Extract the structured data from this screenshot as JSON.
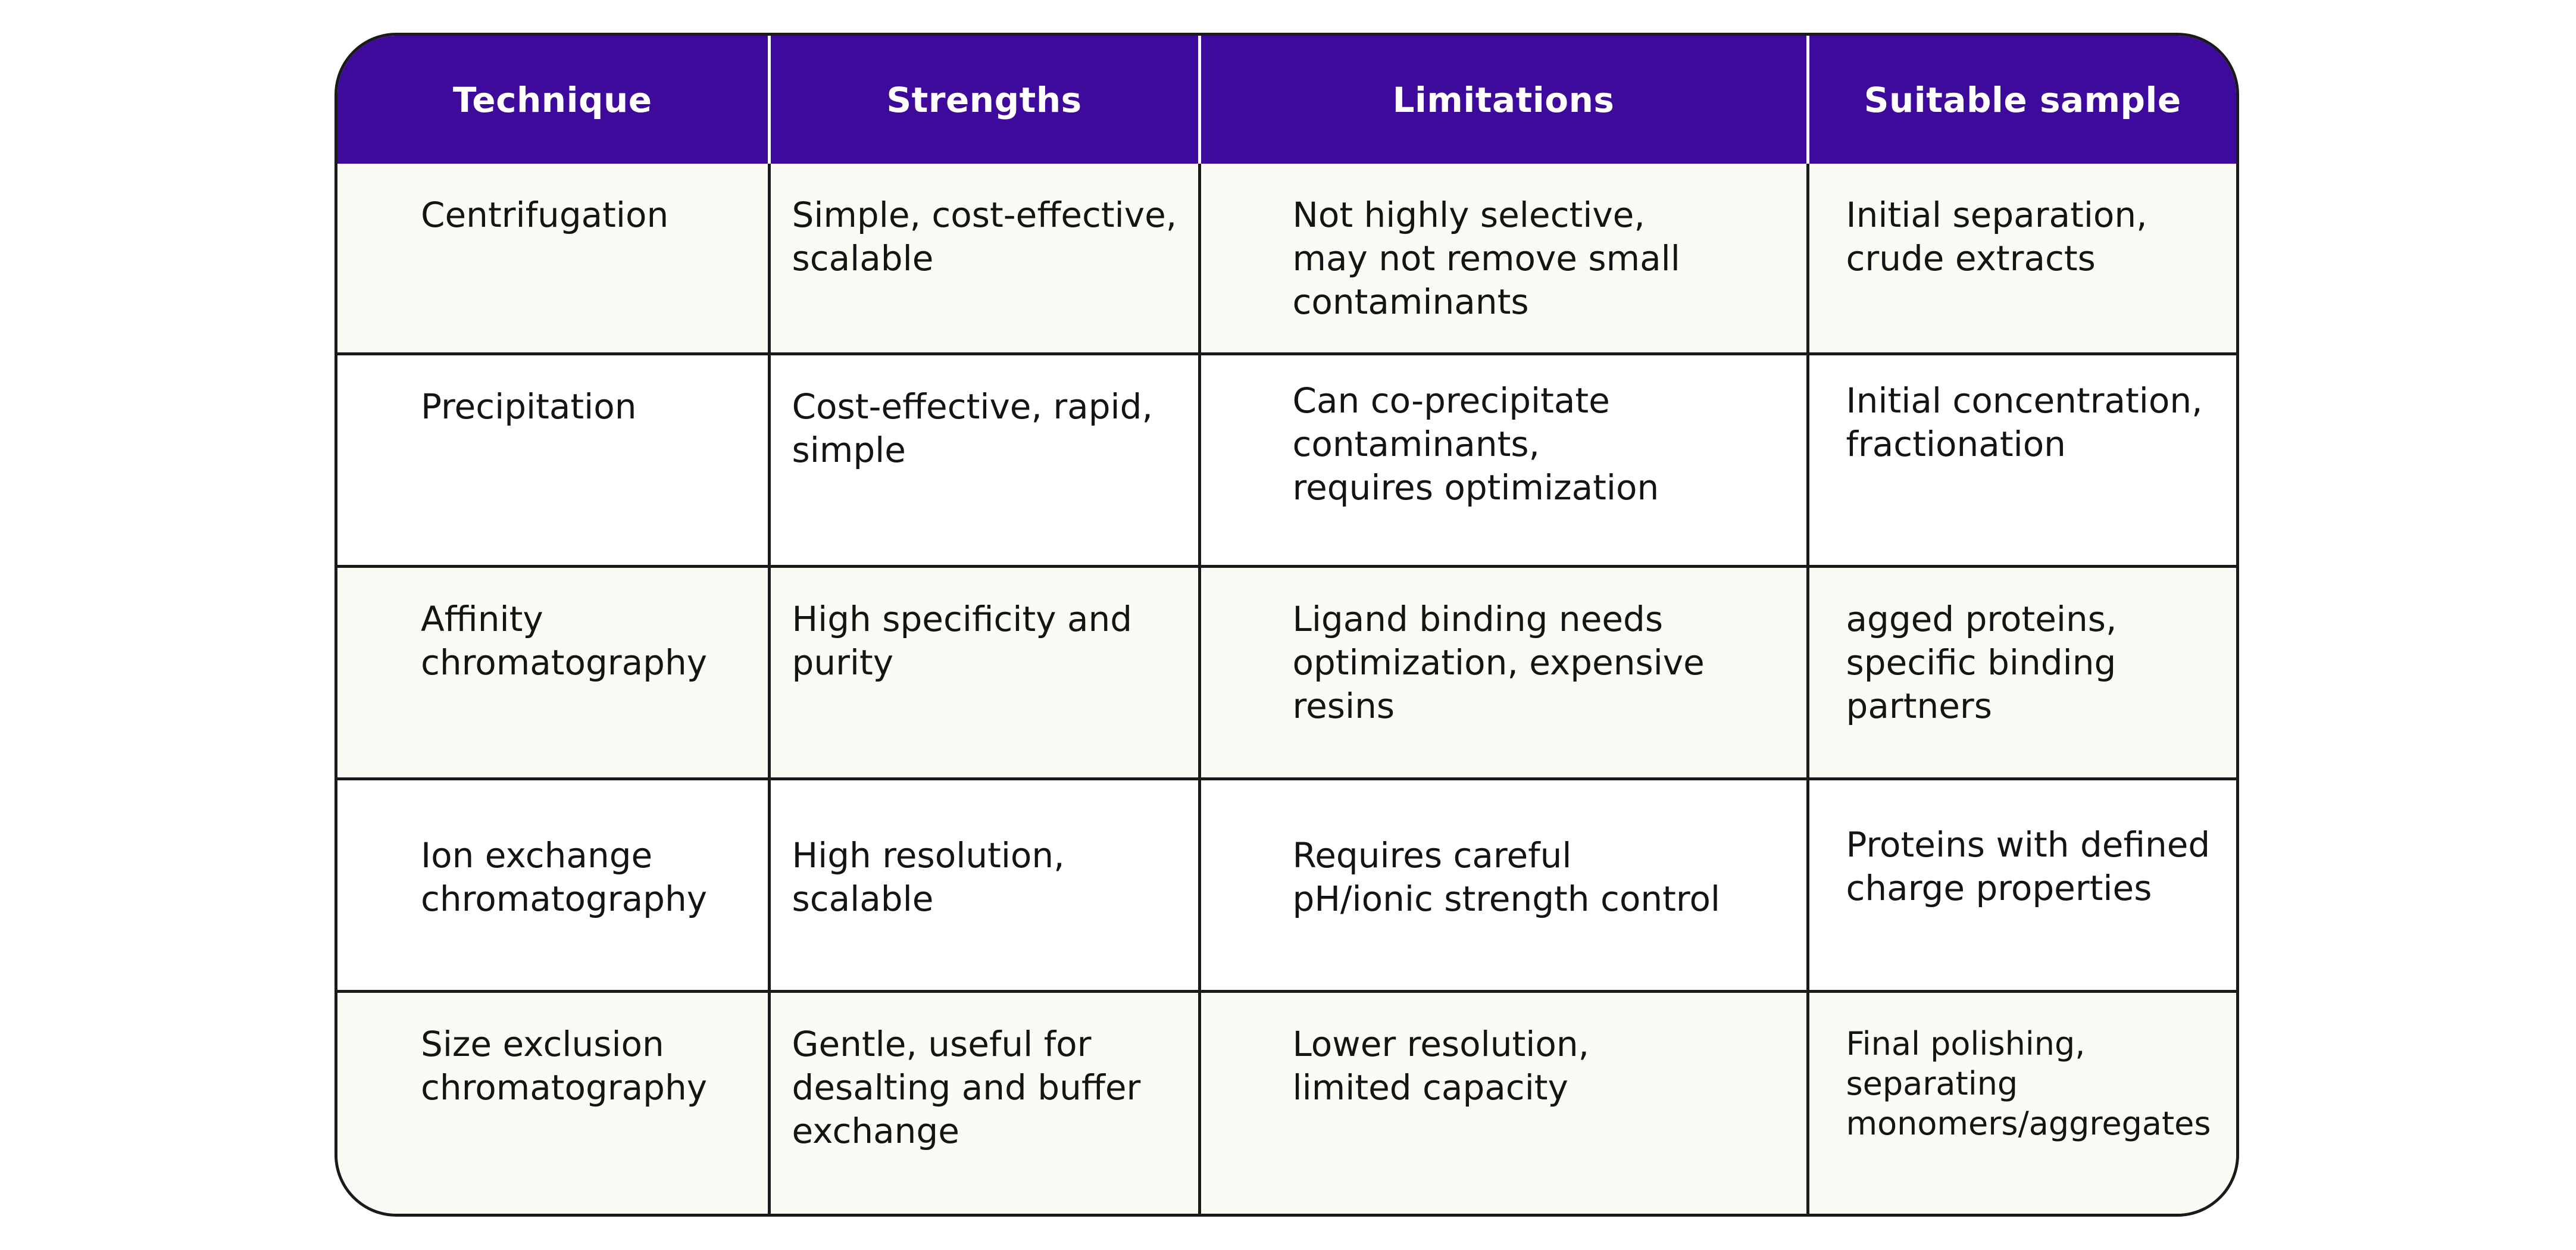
{
  "table": {
    "headers": [
      "Technique",
      "Strengths",
      "Limitations",
      "Suitable sample"
    ],
    "rows": [
      {
        "technique": "Centrifugation",
        "strengths": "Simple, cost-effective,\nscalable",
        "limitations": "Not highly selective,\nmay not remove small\ncontaminants",
        "suitable_sample": "Initial separation,\ncrude extracts"
      },
      {
        "technique": "Precipitation",
        "strengths": "Cost-effective, rapid,\nsimple",
        "limitations": "Can co-precipitate\ncontaminants,\nrequires optimization",
        "suitable_sample": "Initial concentration,\nfractionation"
      },
      {
        "technique": "Affinity\nchromatography",
        "strengths": "High specificity and\npurity",
        "limitations": "Ligand binding needs\noptimization, expensive\nresins",
        "suitable_sample": "agged proteins,\nspecific binding\npartners"
      },
      {
        "technique": "Ion exchange\nchromatography",
        "strengths": "High resolution,\nscalable",
        "limitations": "Requires careful\npH/ionic strength control",
        "suitable_sample": "Proteins with defined\ncharge properties"
      },
      {
        "technique": "Size exclusion\nchromatography",
        "strengths": "Gentle, useful for\ndesalting and buffer\nexchange",
        "limitations": "Lower resolution,\nlimited capacity",
        "suitable_sample": "Final polishing,\nseparating\nmonomers/aggregates"
      }
    ]
  },
  "colors": {
    "header_bg": "#3d0a9c",
    "header_text": "#ffffff",
    "cream_row_bg": "#fcfaf5",
    "border": "#1a1a1a"
  }
}
